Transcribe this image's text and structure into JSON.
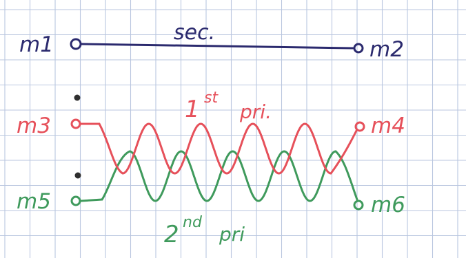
{
  "colors": {
    "paper": "#ffffff",
    "grid": "#b9c6df",
    "sec": "#2b2a6e",
    "pri1": "#e6505a",
    "pri2": "#3f9a5c",
    "dot": "#2f2f2f"
  },
  "labels": {
    "m1": "m1",
    "m2": "m2",
    "m3": "m3",
    "m4": "m4",
    "m5": "m5",
    "m6": "m6",
    "sec": "sec.",
    "pri1_num": "1",
    "pri1_sup": "st",
    "pri1_word": "pri.",
    "pri2_num": "2",
    "pri2_sup": "nd",
    "pri2_word": "pri"
  }
}
